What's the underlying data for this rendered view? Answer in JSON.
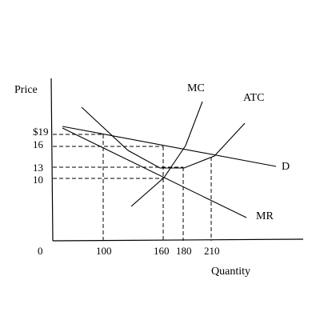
{
  "axes": {
    "y_label": "Price",
    "x_label": "Quantity",
    "origin_label": "0"
  },
  "y_ticks": [
    "$19",
    "16",
    "13",
    "10"
  ],
  "x_ticks": [
    "100",
    "160",
    "180",
    "210"
  ],
  "curves": {
    "mc": "MC",
    "atc": "ATC",
    "demand": "D",
    "mr": "MR"
  }
}
